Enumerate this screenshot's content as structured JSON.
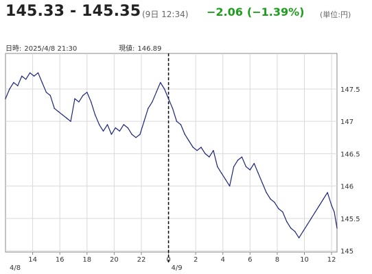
{
  "header": {
    "bid_ask": "145.33 - 145.35",
    "time": "(9日 12:34)",
    "change": "−2.06",
    "change_pct": "(−1.39%)",
    "unit": "(単位:円)"
  },
  "info": {
    "datetime_label": "日時:",
    "datetime_value": "2025/4/8  21:30",
    "price_label": "現値:",
    "price_value": "146.89"
  },
  "colors": {
    "line": "#1a237e",
    "change": "#1e9e1e",
    "grid": "#d9d9d9"
  },
  "chart_data": {
    "type": "line",
    "title": "",
    "xlabel": "",
    "ylabel": "",
    "ylim": [
      144.98,
      148.05
    ],
    "y_ticks": [
      145,
      145.5,
      146,
      146.5,
      147,
      147.5
    ],
    "y_tick_labels": [
      "145",
      "145.5",
      "146",
      "146.5",
      "147",
      "147.5"
    ],
    "xlim": [
      12,
      36.4
    ],
    "x_ticks": [
      14,
      16,
      18,
      20,
      22,
      24,
      26,
      28,
      30,
      32,
      34,
      36
    ],
    "x_tick_labels": [
      "14",
      "16",
      "18",
      "20",
      "22",
      "0",
      "2",
      "4",
      "6",
      "8",
      "10",
      "12"
    ],
    "date_labels": [
      {
        "x": 12,
        "label": "4/8"
      },
      {
        "x": 24,
        "label": "4/9"
      }
    ],
    "cursor_x": 24,
    "grid": true,
    "series": [
      {
        "x": [
          12,
          12.3,
          12.6,
          12.9,
          13.2,
          13.5,
          13.8,
          14.1,
          14.4,
          14.7,
          15,
          15.3,
          15.6,
          15.9,
          16.2,
          16.5,
          16.8,
          17.1,
          17.4,
          17.7,
          18,
          18.3,
          18.6,
          18.9,
          19.2,
          19.5,
          19.8,
          20.1,
          20.4,
          20.7,
          21,
          21.3,
          21.6,
          21.9,
          22.2,
          22.5,
          22.8,
          23.1,
          23.4,
          23.7,
          24,
          24.3,
          24.6,
          24.9,
          25.2,
          25.5,
          25.8,
          26.1,
          26.4,
          26.7,
          27,
          27.3,
          27.6,
          27.9,
          28.2,
          28.5,
          28.8,
          29.1,
          29.4,
          29.7,
          30,
          30.3,
          30.6,
          30.9,
          31.2,
          31.5,
          31.8,
          32.1,
          32.4,
          32.7,
          33,
          33.3,
          33.6,
          33.9,
          34.2,
          34.5,
          34.8,
          35.1,
          35.4,
          35.7,
          36,
          36.2,
          36.4
        ],
        "values": [
          147.35,
          147.5,
          147.6,
          147.55,
          147.7,
          147.65,
          147.75,
          147.7,
          147.75,
          147.6,
          147.45,
          147.4,
          147.2,
          147.15,
          147.1,
          147.05,
          147.0,
          147.35,
          147.3,
          147.4,
          147.45,
          147.3,
          147.1,
          146.95,
          146.85,
          146.95,
          146.8,
          146.9,
          146.85,
          146.95,
          146.9,
          146.8,
          146.75,
          146.8,
          147.0,
          147.2,
          147.3,
          147.45,
          147.6,
          147.5,
          147.35,
          147.2,
          147.0,
          146.95,
          146.8,
          146.7,
          146.6,
          146.55,
          146.6,
          146.5,
          146.45,
          146.55,
          146.3,
          146.2,
          146.1,
          146.0,
          146.3,
          146.4,
          146.45,
          146.3,
          146.25,
          146.35,
          146.2,
          146.05,
          145.9,
          145.8,
          145.75,
          145.65,
          145.6,
          145.45,
          145.35,
          145.3,
          145.2,
          145.3,
          145.4,
          145.5,
          145.6,
          145.7,
          145.8,
          145.9,
          145.7,
          145.6,
          145.35
        ]
      }
    ]
  }
}
